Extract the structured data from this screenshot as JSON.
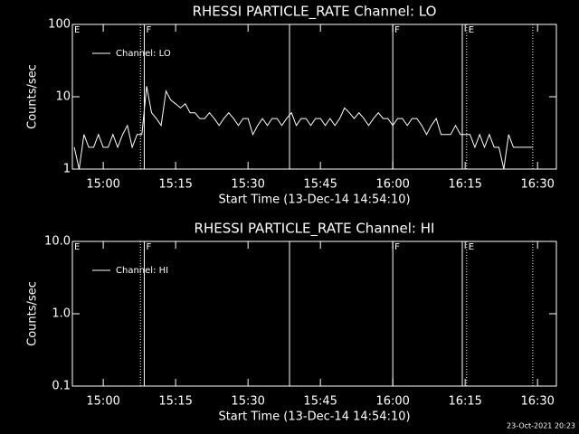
{
  "chart_data": [
    {
      "type": "line",
      "title": "RHESSI PARTICLE_RATE Channel: LO",
      "xlabel": "Start Time (13-Dec-14 14:54:10)",
      "ylabel": "Counts/sec",
      "xlim": [
        893.6,
        993.9
      ],
      "xticks": [
        {
          "value": 900,
          "label": "15:00"
        },
        {
          "value": 915,
          "label": "15:15"
        },
        {
          "value": 930,
          "label": "15:30"
        },
        {
          "value": 945,
          "label": "15:45"
        },
        {
          "value": 960,
          "label": "16:00"
        },
        {
          "value": 975,
          "label": "16:15"
        },
        {
          "value": 990,
          "label": "16:30"
        }
      ],
      "ylim": [
        1,
        100
      ],
      "yticks": [
        1,
        10,
        100
      ],
      "log_y": true,
      "legend": "upper left",
      "markers": [
        {
          "x": 907.7,
          "style": "dotted"
        },
        {
          "x": 908.5,
          "style": "solid"
        },
        {
          "x": 938.6,
          "style": "solid"
        },
        {
          "x": 960,
          "style": "solid"
        },
        {
          "x": 974.4,
          "style": "solid"
        },
        {
          "x": 975.3,
          "style": "dotted"
        },
        {
          "x": 989,
          "style": "dotted"
        }
      ],
      "annotations": [
        {
          "x": 893.6,
          "text": "E"
        },
        {
          "x": 908.5,
          "text": "F"
        },
        {
          "x": 960,
          "text": "F"
        },
        {
          "x": 975.3,
          "text": "E"
        }
      ],
      "x": [
        894,
        895,
        896,
        897,
        898,
        899,
        900,
        901,
        902,
        903,
        904,
        905,
        906,
        907,
        908,
        909,
        910,
        911,
        912,
        913,
        914,
        915,
        916,
        917,
        918,
        919,
        920,
        921,
        922,
        923,
        924,
        925,
        926,
        927,
        928,
        929,
        930,
        931,
        932,
        933,
        934,
        935,
        936,
        937,
        938,
        939,
        940,
        941,
        942,
        943,
        944,
        945,
        946,
        947,
        948,
        949,
        950,
        951,
        952,
        953,
        954,
        955,
        956,
        957,
        958,
        959,
        960,
        961,
        962,
        963,
        964,
        965,
        966,
        967,
        968,
        969,
        970,
        971,
        972,
        973,
        974,
        975,
        976,
        977,
        978,
        979,
        980,
        981,
        982,
        983,
        984,
        985,
        986,
        987,
        988,
        989
      ],
      "series": [
        {
          "name": "Channel: LO",
          "color": "#ffffff",
          "values": [
            2,
            1,
            3,
            2,
            2,
            3,
            2,
            2,
            3,
            2,
            3,
            4,
            2,
            3,
            3,
            14,
            6,
            5,
            4,
            12,
            9,
            8,
            7,
            8,
            6,
            6,
            5,
            5,
            6,
            5,
            4,
            5,
            6,
            5,
            4,
            5,
            5,
            3,
            4,
            5,
            4,
            5,
            5,
            4,
            5,
            6,
            4,
            5,
            5,
            4,
            5,
            5,
            4,
            5,
            4,
            5,
            7,
            6,
            5,
            6,
            5,
            4,
            5,
            6,
            5,
            5,
            4,
            5,
            5,
            4,
            5,
            5,
            4,
            3,
            4,
            5,
            3,
            3,
            3,
            4,
            3,
            3,
            3,
            2,
            3,
            2,
            3,
            2,
            2,
            1,
            3,
            2,
            2,
            2,
            2,
            2
          ]
        }
      ]
    },
    {
      "type": "line",
      "title": "RHESSI PARTICLE_RATE Channel: HI",
      "xlabel": "Start Time (13-Dec-14 14:54:10)",
      "ylabel": "Counts/sec",
      "xlim": [
        893.6,
        993.9
      ],
      "xticks": [
        {
          "value": 900,
          "label": "15:00"
        },
        {
          "value": 915,
          "label": "15:15"
        },
        {
          "value": 930,
          "label": "15:30"
        },
        {
          "value": 945,
          "label": "15:45"
        },
        {
          "value": 960,
          "label": "16:00"
        },
        {
          "value": 975,
          "label": "16:15"
        },
        {
          "value": 990,
          "label": "16:30"
        }
      ],
      "ylim": [
        0.1,
        10
      ],
      "yticks": [
        0.1,
        {
          "value": 1,
          "label": "1.0"
        },
        {
          "value": 10,
          "label": "10.0"
        }
      ],
      "log_y": true,
      "legend": "upper left",
      "markers": [
        {
          "x": 907.7,
          "style": "dotted"
        },
        {
          "x": 908.5,
          "style": "solid"
        },
        {
          "x": 938.6,
          "style": "solid"
        },
        {
          "x": 960,
          "style": "solid"
        },
        {
          "x": 974.4,
          "style": "solid"
        },
        {
          "x": 975.3,
          "style": "dotted"
        },
        {
          "x": 989,
          "style": "dotted"
        }
      ],
      "annotations": [
        {
          "x": 893.6,
          "text": "E"
        },
        {
          "x": 908.5,
          "text": "F"
        },
        {
          "x": 960,
          "text": "F"
        },
        {
          "x": 975.3,
          "text": "E"
        }
      ],
      "x": [],
      "series": [
        {
          "name": "Channel: HI",
          "color": "#ffffff",
          "values": []
        }
      ]
    }
  ],
  "footer": "23-Oct-2021 20:23"
}
